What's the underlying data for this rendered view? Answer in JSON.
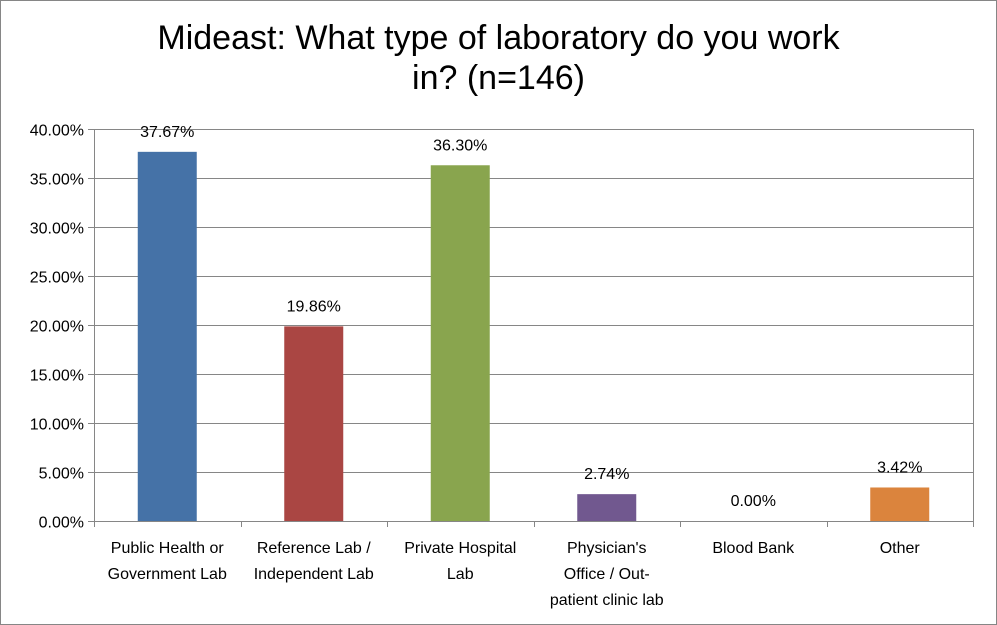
{
  "chart_data": {
    "type": "bar",
    "title_lines": [
      "Mideast: What type of laboratory do you work",
      "in? (n=146)"
    ],
    "categories": [
      [
        "Public Health or",
        "Government Lab"
      ],
      [
        "Reference Lab /",
        "Independent Lab"
      ],
      [
        "Private Hospital",
        "Lab"
      ],
      [
        "Physician's",
        "Office / Out-",
        "patient clinic lab"
      ],
      [
        "Blood Bank"
      ],
      [
        "Other"
      ]
    ],
    "values": [
      37.67,
      19.86,
      36.3,
      2.74,
      0.0,
      3.42
    ],
    "value_labels": [
      "37.67%",
      "19.86%",
      "36.30%",
      "2.74%",
      "0.00%",
      "3.42%"
    ],
    "colors": [
      "#4572a7",
      "#aa4643",
      "#89a54e",
      "#71588f",
      "#4198af",
      "#db843d"
    ],
    "ylim": [
      0,
      40
    ],
    "yticks": [
      0,
      5,
      10,
      15,
      20,
      25,
      30,
      35,
      40
    ],
    "ytick_labels": [
      "0.00%",
      "5.00%",
      "10.00%",
      "15.00%",
      "20.00%",
      "25.00%",
      "30.00%",
      "35.00%",
      "40.00%"
    ],
    "grid": true,
    "legend": "none"
  }
}
